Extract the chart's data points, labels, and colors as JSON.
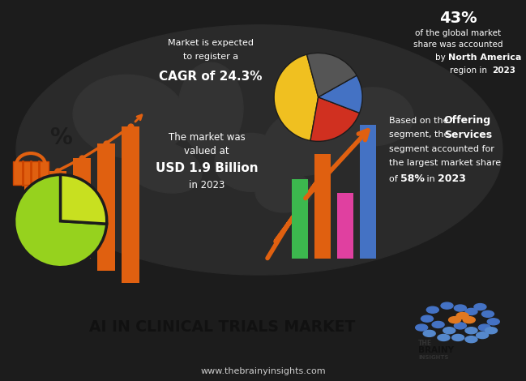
{
  "bg_color": "#1c1c1c",
  "footer_white_bg": "#ffffff",
  "footer_dark_bg": "#3a3a3a",
  "title": "AI IN CLINICAL TRIALS MARKET",
  "website": "www.thebrainyinsights.com",
  "top_left_text1": "Market is expected",
  "top_left_text2": "to register a",
  "top_left_bold": "CAGR of 24.3%",
  "top_right_pct": "43%",
  "top_right_line1": "of the global market",
  "top_right_line2": "share was accounted",
  "top_right_line3a": "by ",
  "top_right_line3b": "North America",
  "top_right_line4a": "region in ",
  "top_right_line4b": "2023",
  "bot_left_line1": "The market was",
  "bot_left_line2": "valued at",
  "bot_left_bold": "USD 1.9 Billion",
  "bot_left_line3": "in 2023",
  "bot_right_line1a": "Based on the ",
  "bot_right_line1b": "Offering",
  "bot_right_line2a": "segment, the ",
  "bot_right_line2b": "Services",
  "bot_right_line3": "segment accounted for",
  "bot_right_line4": "the largest market share",
  "bot_right_line5a": "of ",
  "bot_right_line5b": "58%",
  "bot_right_line5c": " in ",
  "bot_right_line5d": "2023",
  "white": "#ffffff",
  "orange": "#e06010",
  "green_lime": "#96d21e",
  "yellow_green": "#c8e020",
  "bar1_green": "#3cb84e",
  "bar2_magenta": "#e040a0",
  "bar3_blue": "#4472c4",
  "bar4_orange": "#e06010"
}
